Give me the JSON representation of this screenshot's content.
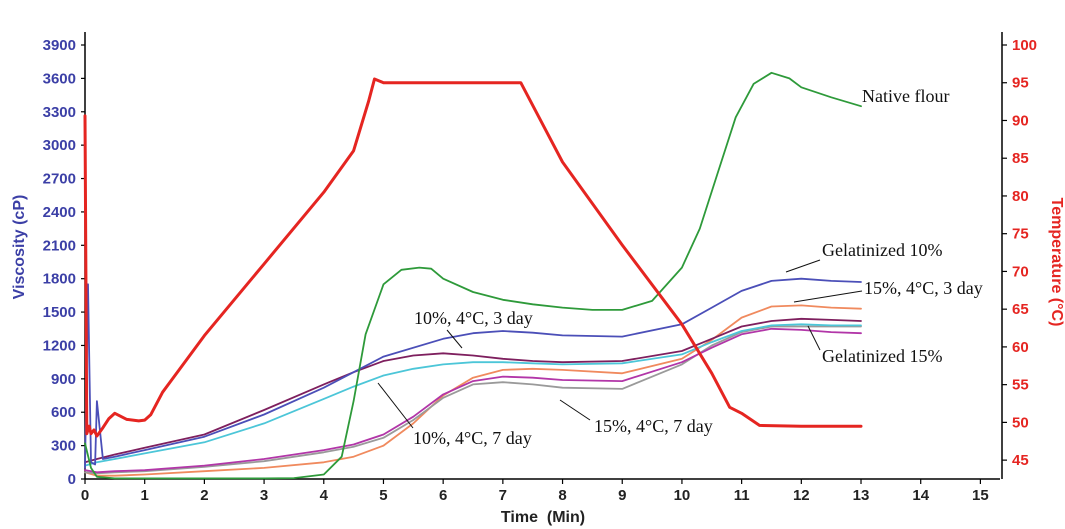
{
  "chart_data": {
    "type": "line",
    "xlabel": "Time  (Min)",
    "ylabel_left": "Viscosity (cP)",
    "ylabel_right": "Temperature (°C)",
    "xlim": [
      0,
      15
    ],
    "ylim_left": [
      0,
      3900
    ],
    "ylim_right": [
      42.5,
      100
    ],
    "x_ticks": [
      0,
      1,
      2,
      3,
      4,
      5,
      6,
      7,
      8,
      9,
      10,
      11,
      12,
      13,
      14,
      15
    ],
    "y_left_ticks": [
      0,
      300,
      600,
      900,
      1200,
      1500,
      1800,
      2100,
      2400,
      2700,
      3000,
      3300,
      3600,
      3900
    ],
    "y_right_ticks": [
      45,
      50,
      55,
      60,
      65,
      70,
      75,
      80,
      85,
      90,
      95,
      100
    ],
    "grid": false,
    "colors": {
      "left_axis": "#3b3fa6",
      "right_axis": "#e52521",
      "x_axis": "#222222"
    },
    "series": [
      {
        "name": "Native flour",
        "axis": "left",
        "color": "#2e9a3a",
        "x": [
          0,
          0.1,
          0.2,
          0.5,
          1,
          2,
          3,
          3.5,
          4,
          4.3,
          4.5,
          4.7,
          5,
          5.3,
          5.6,
          5.8,
          6,
          6.5,
          7,
          7.5,
          8,
          8.5,
          9,
          9.5,
          10,
          10.3,
          10.6,
          10.9,
          11.2,
          11.5,
          11.8,
          12,
          12.5,
          13
        ],
        "y": [
          320,
          100,
          20,
          5,
          5,
          5,
          5,
          8,
          40,
          200,
          700,
          1300,
          1750,
          1880,
          1900,
          1890,
          1800,
          1680,
          1610,
          1570,
          1540,
          1520,
          1520,
          1600,
          1900,
          2250,
          2750,
          3250,
          3550,
          3650,
          3600,
          3520,
          3430,
          3350
        ]
      },
      {
        "name": "Gelatinized 10%",
        "axis": "left",
        "color": "#4b4fb8",
        "x": [
          0,
          0.05,
          0.1,
          0.17,
          0.2,
          0.3,
          0.5,
          1,
          2,
          3,
          4,
          5,
          6,
          6.5,
          7,
          7.5,
          8,
          9,
          10,
          10.5,
          11,
          11.5,
          12,
          12.5,
          13
        ],
        "y": [
          100,
          1750,
          150,
          130,
          700,
          180,
          200,
          260,
          380,
          580,
          820,
          1100,
          1260,
          1310,
          1330,
          1315,
          1290,
          1280,
          1390,
          1540,
          1690,
          1780,
          1800,
          1780,
          1770
        ]
      },
      {
        "name": "15%, 4°C, 3 day",
        "axis": "left",
        "color": "#f08a5e",
        "x": [
          0,
          0.2,
          0.5,
          1,
          2,
          3,
          4,
          4.5,
          5,
          5.5,
          6,
          6.5,
          7,
          7.5,
          8,
          9,
          10,
          10.5,
          11,
          11.5,
          12,
          12.5,
          13
        ],
        "y": [
          60,
          30,
          30,
          40,
          70,
          100,
          150,
          200,
          300,
          500,
          750,
          910,
          980,
          990,
          980,
          950,
          1080,
          1250,
          1450,
          1550,
          1560,
          1540,
          1530
        ]
      },
      {
        "name": "Gelatinized 15%",
        "axis": "left",
        "color": "#b236a8",
        "x": [
          0,
          0.2,
          0.5,
          1,
          2,
          3,
          4,
          4.5,
          5,
          5.5,
          6,
          6.5,
          7,
          7.5,
          8,
          9,
          10,
          10.5,
          11,
          11.5,
          12,
          12.5,
          13
        ],
        "y": [
          80,
          60,
          70,
          80,
          120,
          180,
          260,
          310,
          400,
          560,
          760,
          880,
          920,
          910,
          890,
          880,
          1050,
          1180,
          1300,
          1350,
          1340,
          1320,
          1310
        ]
      },
      {
        "name": "10%, 4°C, 3 day",
        "axis": "left",
        "color": "#7e1f5e",
        "x": [
          0,
          0.2,
          0.5,
          1,
          2,
          3,
          4,
          4.5,
          5,
          5.5,
          6,
          6.5,
          7,
          7.5,
          8,
          9,
          10,
          10.5,
          11,
          11.5,
          12,
          12.5,
          13
        ],
        "y": [
          150,
          180,
          220,
          280,
          400,
          620,
          850,
          960,
          1060,
          1110,
          1130,
          1110,
          1080,
          1060,
          1050,
          1060,
          1150,
          1260,
          1370,
          1420,
          1440,
          1430,
          1420
        ]
      },
      {
        "name": "10%, 4°C, 7 day",
        "axis": "left",
        "color": "#4cc6d8",
        "x": [
          0,
          0.2,
          0.5,
          1,
          2,
          3,
          4,
          4.5,
          5,
          5.5,
          6,
          6.5,
          7,
          7.5,
          8,
          9,
          10,
          10.5,
          11,
          11.5,
          12,
          12.5,
          13
        ],
        "y": [
          120,
          150,
          180,
          230,
          330,
          500,
          720,
          830,
          930,
          990,
          1030,
          1050,
          1050,
          1040,
          1030,
          1040,
          1120,
          1230,
          1330,
          1380,
          1390,
          1380,
          1380
        ]
      },
      {
        "name": "15%, 4°C, 7 day",
        "axis": "left",
        "color": "#9a9a9a",
        "x": [
          0,
          0.2,
          0.5,
          1,
          2,
          3,
          4,
          4.5,
          5,
          5.5,
          6,
          6.5,
          7,
          7.5,
          8,
          9,
          10,
          10.5,
          11,
          11.5,
          12,
          12.5,
          13
        ],
        "y": [
          60,
          50,
          60,
          70,
          110,
          160,
          240,
          290,
          370,
          530,
          730,
          850,
          870,
          850,
          820,
          810,
          1030,
          1200,
          1320,
          1370,
          1370,
          1370,
          1370
        ]
      },
      {
        "name": "Temperature",
        "axis": "right",
        "color": "#e52521",
        "x": [
          0,
          0.03,
          0.07,
          0.1,
          0.15,
          0.2,
          0.3,
          0.4,
          0.5,
          0.7,
          0.9,
          1,
          1.1,
          1.3,
          2,
          3,
          4,
          4.5,
          4.75,
          4.85,
          5,
          5.5,
          6,
          6.5,
          7,
          7.2,
          7.3,
          8,
          9,
          10,
          10.5,
          10.8,
          11,
          11.3,
          12,
          13
        ],
        "y": [
          90.6,
          48.5,
          49.5,
          48.5,
          49,
          48.2,
          49.3,
          50.5,
          51.2,
          50.4,
          50.2,
          50.3,
          51,
          54,
          61.5,
          71,
          80.5,
          86,
          92.5,
          95.5,
          95,
          95,
          95,
          95,
          95,
          95,
          95,
          84.5,
          73.5,
          63,
          56.5,
          52,
          51.2,
          49.6,
          49.5,
          49.5
        ]
      }
    ],
    "annotations": [
      {
        "text": "Native flour",
        "series": "Native flour"
      },
      {
        "text": "Gelatinized 10%",
        "series": "Gelatinized 10%"
      },
      {
        "text": "15%, 4°C, 3 day",
        "series": "15%, 4°C, 3 day"
      },
      {
        "text": "Gelatinized 15%",
        "series": "Gelatinized 15%"
      },
      {
        "text": "10%, 4°C, 3 day",
        "series": "10%, 4°C, 3 day"
      },
      {
        "text": "10%, 4°C, 7 day",
        "series": "10%, 4°C, 7 day"
      },
      {
        "text": "15%, 4°C, 7 day",
        "series": "15%, 4°C, 7 day"
      }
    ]
  }
}
